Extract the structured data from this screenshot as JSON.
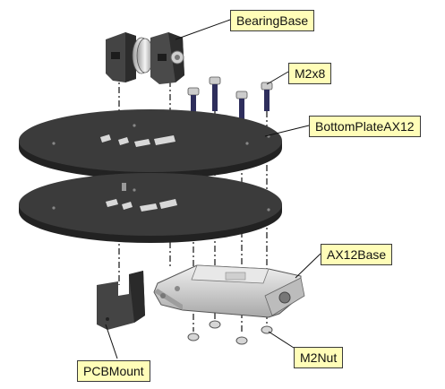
{
  "labels": {
    "bearing_base": "BearingBase",
    "screw": "M2x8",
    "bottom_plate": "BottomPlateAX12",
    "ax12_base": "AX12Base",
    "pcb_mount": "PCBMount",
    "nut": "M2Nut"
  },
  "colors": {
    "callout_fill": "#fffdb8",
    "callout_border": "#3a3a3a",
    "plate": "#3b3b3b",
    "plate_edge": "#222222",
    "bracket": "#444444",
    "metal": "#d2d2d2",
    "screw": "#2a2a55"
  }
}
